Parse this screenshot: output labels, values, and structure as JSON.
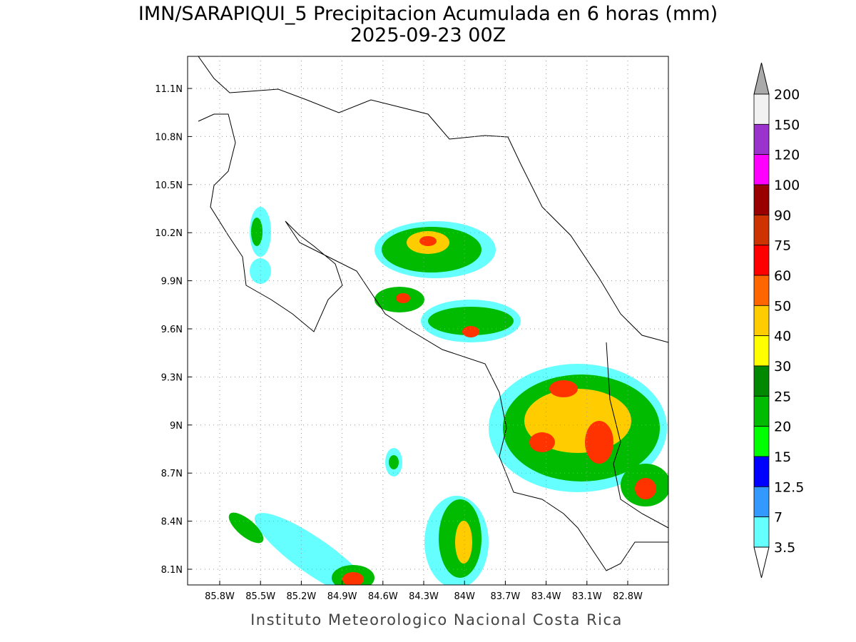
{
  "title": "IMN/SARAPIQUI_5 Precipitacion Acumulada en 6 horas (mm)",
  "subtitle": "2025-09-23 00Z",
  "map": {
    "lat_labels": [
      "11.1N",
      "10.8N",
      "10.5N",
      "10.2N",
      "9.9N",
      "9.6N",
      "9.3N",
      "9N",
      "8.7N",
      "8.4N",
      "8.1N"
    ],
    "lon_labels": [
      "85.8W",
      "85.5W",
      "85.2W",
      "84.9W",
      "84.6W",
      "84.3W",
      "84W",
      "83.7W",
      "83.4W",
      "83.1W",
      "82.8W"
    ]
  },
  "colorbar": {
    "labels": [
      "200",
      "150",
      "120",
      "100",
      "90",
      "75",
      "60",
      "50",
      "40",
      "30",
      "25",
      "20",
      "15",
      "12.5",
      "7",
      "3.5"
    ],
    "colors": [
      "#f2f2f2",
      "#9933cc",
      "#ff00ff",
      "#990000",
      "#cc3300",
      "#ff0000",
      "#ff6600",
      "#ffcc00",
      "#ffff00",
      "#008800",
      "#00bb00",
      "#00ff00",
      "#0000ff",
      "#3399ff",
      "#66ffff"
    ],
    "over_color": "#aaaaaa",
    "under_color": "#ffffff"
  },
  "footer": "Instituto Meteorologico Nacional Costa Rica"
}
